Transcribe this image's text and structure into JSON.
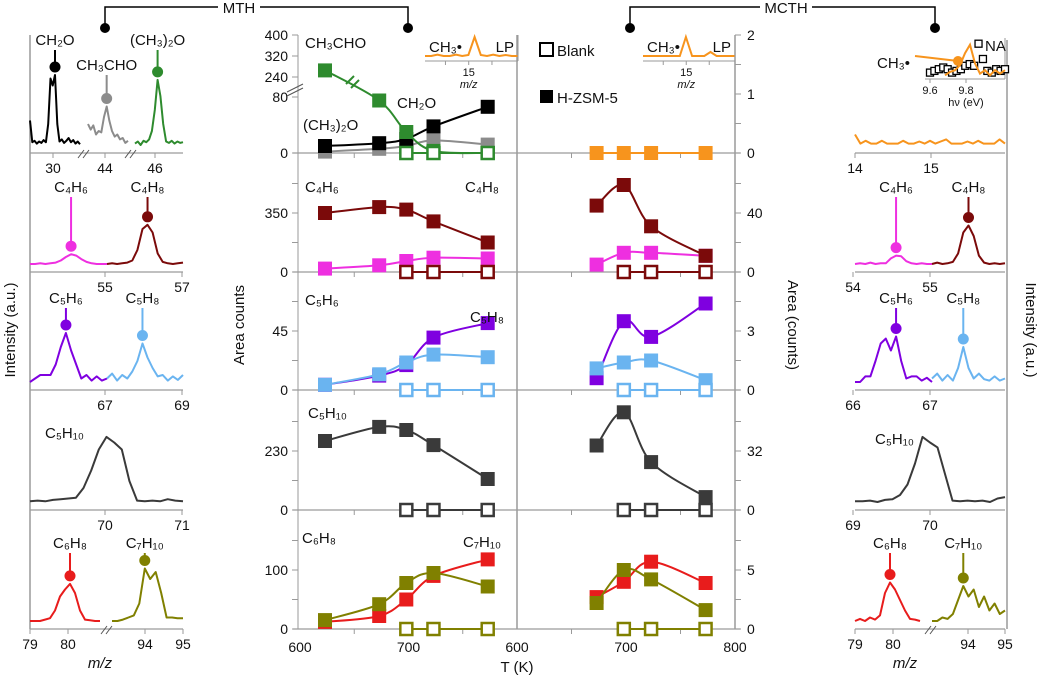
{
  "figure": {
    "sections": {
      "mth": "MTH",
      "mcth": "MCTH"
    },
    "axis_labels": {
      "intensity_left": "Intensity (a.u.)",
      "area_counts": "Area counts",
      "area_counts_right": "Area (counts)",
      "intensity_right": "Intensity (a.u.)",
      "temperature": "T (K)",
      "mz_left": "m/z",
      "mz_right": "m/z"
    },
    "legend": {
      "blank": "Blank",
      "hzsm5": "H-ZSM-5"
    }
  },
  "chart_data": {
    "type": "line",
    "xlabel": "T (K)",
    "xlim": [
      600,
      800
    ],
    "x_tick_labels_mth": [
      "600",
      "700"
    ],
    "x_tick_labels_mcth": [
      "600",
      "700",
      "800"
    ],
    "legend": [
      "Blank (open squares)",
      "H-ZSM-5 (filled squares)"
    ],
    "rows": [
      {
        "left_ticks": [
          0,
          80,
          240,
          320,
          400
        ],
        "right_ticks": [
          0,
          1,
          2
        ],
        "mz_ticks_left": [
          "30",
          "44",
          "46"
        ],
        "mz_ticks_right": [
          "14",
          "15"
        ],
        "blank_T_mth": [
          698,
          723,
          773
        ],
        "blank_T_mcth": [],
        "blank_color_mth": "#2e8b2e",
        "blank_color_mcth": "#f7941d",
        "series": [
          {
            "key": "ch3cho",
            "label": "CH₃CHO",
            "color": "#8c8c8c",
            "mth": [
              [
                623,
                2
              ],
              [
                673,
                6
              ],
              [
                698,
                10
              ],
              [
                723,
                18
              ],
              [
                773,
                12
              ]
            ],
            "spectrum_left": [
              0.3,
              0.22,
              0.28,
              0.15,
              0.2,
              0.18,
              0.4,
              0.55,
              0.35,
              0.2,
              0.12,
              0.15,
              0.08,
              0.1,
              0.03,
              0.06
            ]
          },
          {
            "key": "ch2o",
            "label": "CH₂O",
            "color": "#000000",
            "mth": [
              [
                623,
                10
              ],
              [
                673,
                14
              ],
              [
                698,
                20
              ],
              [
                723,
                38
              ],
              [
                773,
                66
              ]
            ],
            "spectrum_left": [
              0.35,
              0.04,
              0.06,
              0.02,
              0.05,
              0.03,
              0.07,
              0.04,
              0.3,
              0.95,
              0.85,
              1.0,
              0.3,
              0.05,
              0.08,
              0.03,
              0.06,
              0.1,
              0.04,
              0.07,
              0.02,
              0.05,
              0.01
            ]
          },
          {
            "key": "ch32o",
            "label": "(CH₃)₂O",
            "color": "#2e8b2e",
            "mth": [
              [
                623,
                265
              ],
              [
                673,
                75
              ],
              [
                698,
                30
              ],
              [
                723,
                3
              ],
              [
                773,
                0
              ]
            ],
            "spectrum_left": [
              0.02,
              0.05,
              0.0,
              0.06,
              0.04,
              0.08,
              0.2,
              0.5,
              0.93,
              0.7,
              0.3,
              0.05,
              0.03,
              0.06,
              0.02,
              0.05,
              0.03,
              0.04
            ]
          },
          {
            "key": "ch3",
            "label": "CH₃•",
            "color": "#f7941d",
            "mcth": [
              [
                673,
                0
              ],
              [
                698,
                0
              ],
              [
                723,
                0
              ],
              [
                773,
                0
              ]
            ],
            "spectrum_right": [
              0.15,
              0.02,
              0.06,
              0.02,
              0.02,
              0.06,
              0.02,
              0.02,
              0.02,
              0.06,
              0.02,
              0.02,
              0.05,
              0.02,
              0.06,
              0.02,
              0.05,
              0.08,
              0.02,
              0.02,
              0.02,
              0.05,
              0.02,
              0.06,
              0.02,
              0.02,
              0.02,
              0.08,
              0.02
            ]
          }
        ]
      },
      {
        "left_ticks": [
          0,
          350
        ],
        "right_ticks": [
          0,
          40
        ],
        "mz_ticks_left": [
          "55",
          "57"
        ],
        "mz_ticks_right": [
          "54",
          "55"
        ],
        "blank_T_mth": [
          698,
          723,
          773
        ],
        "blank_T_mcth": [
          698,
          723,
          773
        ],
        "blank_color_mth": "#7b0a0a",
        "blank_color_mcth": "#7b0a0a",
        "series": [
          {
            "key": "c4h6",
            "label": "C₄H₆",
            "color": "#ee2fe0",
            "mth": [
              [
                623,
                20
              ],
              [
                673,
                40
              ],
              [
                698,
                65
              ],
              [
                723,
                85
              ],
              [
                773,
                80
              ]
            ],
            "mcth": [
              [
                673,
                5
              ],
              [
                698,
                13
              ],
              [
                723,
                13
              ],
              [
                773,
                11
              ]
            ],
            "spectrum_left": [
              0,
              0,
              0.01,
              0,
              0.01,
              0.02,
              0.05,
              0.1,
              0.14,
              0.12,
              0.07,
              0.03,
              0.01,
              0,
              0,
              0
            ],
            "spectrum_right": [
              0,
              0.01,
              0,
              0.02,
              0,
              0.01,
              0.01,
              0.08,
              0.12,
              0.11,
              0.04,
              0.01,
              0,
              0.01,
              0,
              0
            ]
          },
          {
            "key": "c4h8",
            "label": "C₄H₈",
            "color": "#7b0a0a",
            "mth": [
              [
                623,
                350
              ],
              [
                673,
                385
              ],
              [
                698,
                370
              ],
              [
                723,
                300
              ],
              [
                773,
                175
              ]
            ],
            "mcth": [
              [
                673,
                45
              ],
              [
                698,
                59
              ],
              [
                723,
                31
              ],
              [
                773,
                11
              ]
            ],
            "spectrum_left": [
              0,
              0.01,
              0,
              0.01,
              0.02,
              0.05,
              0.2,
              0.5,
              0.56,
              0.45,
              0.15,
              0.03,
              0.01,
              0,
              0.01,
              0.02
            ],
            "spectrum_right": [
              0,
              0.02,
              0,
              0.01,
              0.03,
              0.15,
              0.45,
              0.55,
              0.4,
              0.12,
              0.02,
              0,
              0.01,
              0,
              0.01
            ]
          }
        ]
      },
      {
        "left_ticks": [
          0,
          45
        ],
        "right_ticks": [
          0,
          3
        ],
        "mz_ticks_left": [
          "67",
          "69"
        ],
        "mz_ticks_right": [
          "66",
          "67"
        ],
        "blank_T_mth": [
          698,
          723,
          773
        ],
        "blank_T_mcth": [
          698,
          723,
          773
        ],
        "blank_color_mth": "#6ab4f0",
        "blank_color_mcth": "#6ab4f0",
        "series": [
          {
            "key": "c5h6",
            "label": "C₅H₆",
            "color": "#7f00e0",
            "mth": [
              [
                623,
                4
              ],
              [
                673,
                11
              ],
              [
                698,
                19
              ],
              [
                723,
                40
              ],
              [
                773,
                51
              ]
            ],
            "mcth": [
              [
                673,
                0.6
              ],
              [
                698,
                3.5
              ],
              [
                723,
                2.7
              ],
              [
                773,
                4.4
              ]
            ],
            "spectrum_left": [
              0,
              0.05,
              0.1,
              0.1,
              0.1,
              0.25,
              0.5,
              0.7,
              0.45,
              0.25,
              0.05,
              0.1,
              0.02,
              0.08,
              0.02,
              0.05
            ],
            "spectrum_right": [
              0,
              0,
              0.08,
              0.08,
              0.3,
              0.55,
              0.62,
              0.45,
              0.65,
              0.3,
              0.05,
              0.08,
              0.08,
              0.02,
              0.06,
              0.0
            ]
          },
          {
            "key": "c5h8",
            "label": "C₅H₈",
            "color": "#6ab4f0",
            "mth": [
              [
                623,
                4
              ],
              [
                673,
                12
              ],
              [
                698,
                21
              ],
              [
                723,
                27
              ],
              [
                773,
                25
              ]
            ],
            "mcth": [
              [
                673,
                1.1
              ],
              [
                698,
                1.4
              ],
              [
                723,
                1.5
              ],
              [
                773,
                0.5
              ]
            ],
            "spectrum_left": [
              0.05,
              0.12,
              0.02,
              0.1,
              0.05,
              0.15,
              0.3,
              0.55,
              0.35,
              0.2,
              0.08,
              0.1,
              0.02,
              0.08,
              0.03,
              0.1
            ],
            "spectrum_right": [
              0.05,
              0.12,
              0.02,
              0.1,
              0.02,
              0.2,
              0.5,
              0.2,
              0.05,
              0.12,
              0.04,
              0.02,
              0.08,
              0.02,
              0.05
            ]
          }
        ]
      },
      {
        "left_ticks": [
          0,
          230
        ],
        "right_ticks": [
          0,
          32
        ],
        "mz_ticks_left": [
          "70",
          "71"
        ],
        "mz_ticks_right": [
          "69",
          "70"
        ],
        "blank_T_mth": [
          698,
          723,
          773
        ],
        "blank_T_mcth": [
          698,
          723,
          773
        ],
        "blank_color_mth": "#3a3a3a",
        "blank_color_mcth": "#3a3a3a",
        "series": [
          {
            "key": "c5h10",
            "label": "C₅H₁₀",
            "color": "#3a3a3a",
            "mth": [
              [
                623,
                269
              ],
              [
                673,
                324
              ],
              [
                698,
                312
              ],
              [
                723,
                253
              ],
              [
                773,
                121
              ]
            ],
            "mcth": [
              [
                673,
                35
              ],
              [
                698,
                53
              ],
              [
                723,
                26
              ],
              [
                773,
                7
              ]
            ],
            "spectrum_left": [
              0.01,
              0.02,
              0.01,
              0.03,
              0.04,
              0.05,
              0.06,
              0.2,
              0.45,
              0.75,
              0.93,
              0.85,
              0.75,
              0.3,
              0.02,
              0.01,
              0.02,
              0.01,
              0.04,
              0.02,
              0.01
            ],
            "spectrum_right": [
              0.01,
              0.01,
              0.02,
              0,
              0.03,
              0.04,
              0.1,
              0.25,
              0.55,
              0.93,
              0.85,
              0.78,
              0.4,
              0.02,
              0.01,
              0.02,
              0.01,
              0.02,
              0.0,
              0.05,
              0.07
            ]
          }
        ]
      },
      {
        "left_ticks": [
          0,
          100
        ],
        "right_ticks": [
          0,
          5
        ],
        "mz_ticks_left": [
          "79",
          "80",
          "94",
          "95"
        ],
        "mz_ticks_right": [
          "79",
          "80",
          "94",
          "95"
        ],
        "blank_T_mth": [
          698,
          723,
          773
        ],
        "blank_T_mcth": [
          698,
          723,
          773
        ],
        "blank_color_mth": "#808000",
        "blank_color_mcth": "#808000",
        "series": [
          {
            "key": "c6h8",
            "label": "C₆H₈",
            "color": "#e81c1c",
            "mth": [
              [
                623,
                12
              ],
              [
                673,
                22
              ],
              [
                698,
                50
              ],
              [
                723,
                90
              ],
              [
                773,
                118
              ]
            ],
            "mcth": [
              [
                673,
                2.7
              ],
              [
                698,
                4.0
              ],
              [
                723,
                5.7
              ],
              [
                773,
                3.9
              ]
            ],
            "spectrum_left": [
              0,
              0,
              0,
              0.02,
              0.04,
              0.15,
              0.35,
              0.45,
              0.53,
              0.4,
              0.15,
              0.02,
              0.01,
              0,
              0
            ],
            "spectrum_right": [
              0.0,
              0.03,
              0,
              0.05,
              0.02,
              0.08,
              0.4,
              0.55,
              0.45,
              0.3,
              0.15,
              0.03,
              0.02,
              0.0
            ]
          },
          {
            "key": "c7h10",
            "label": "C₇H₁₀",
            "color": "#808000",
            "mth": [
              [
                623,
                15
              ],
              [
                673,
                42
              ],
              [
                698,
                78
              ],
              [
                723,
                95
              ],
              [
                773,
                72
              ]
            ],
            "mcth": [
              [
                673,
                2.2
              ],
              [
                698,
                5.0
              ],
              [
                723,
                4.2
              ],
              [
                773,
                1.6
              ]
            ],
            "spectrum_left": [
              0,
              0,
              0.02,
              0.05,
              0.08,
              0.25,
              0.75,
              0.6,
              0.7,
              0.4,
              0.05,
              0.05,
              0.04,
              0.04
            ],
            "spectrum_right": [
              0,
              0,
              0.05,
              0.03,
              0.1,
              0.3,
              0.5,
              0.35,
              0.45,
              0.2,
              0.35,
              0.15,
              0.25,
              0.1,
              0.15
            ]
          }
        ]
      }
    ],
    "insets": {
      "lp_mth": {
        "label": "LP",
        "species": "CH₃•",
        "tick": "15",
        "xlabel": "m/z",
        "values": [
          0.05,
          0.05,
          0.12,
          0.05,
          0.05,
          0.12,
          0.05,
          0.1,
          1.0,
          0.1,
          0.05,
          0.12,
          0.05,
          0.1,
          0.05,
          0.05
        ]
      },
      "lp_mcth": {
        "label": "LP",
        "species": "CH₃•",
        "tick": "15",
        "xlabel": "m/z",
        "values": [
          0.05,
          0.05,
          0.05,
          0.05,
          0.05,
          0.05,
          0.05,
          1.0,
          0.05,
          0.05,
          0.05,
          0.25,
          0.05,
          0.05,
          0.05,
          0.05
        ]
      },
      "na": {
        "label": "NA",
        "species": "CH₃•",
        "ticks": [
          "9.6",
          "9.8"
        ],
        "xlabel": "hν (eV)",
        "squares": [
          0.1,
          0.15,
          0.2,
          0.25,
          0.2,
          0.1,
          0.15,
          0.2,
          0.3,
          0.35,
          0.3,
          0.95,
          0.5,
          0.15,
          0.1,
          0.2,
          0.15,
          0.2
        ],
        "line": [
          0.05,
          0.15,
          0.2,
          0.35,
          0.7,
          0.95,
          0.4,
          0.1,
          0.2,
          0.05,
          0.2,
          0.1,
          0.2
        ]
      }
    }
  }
}
